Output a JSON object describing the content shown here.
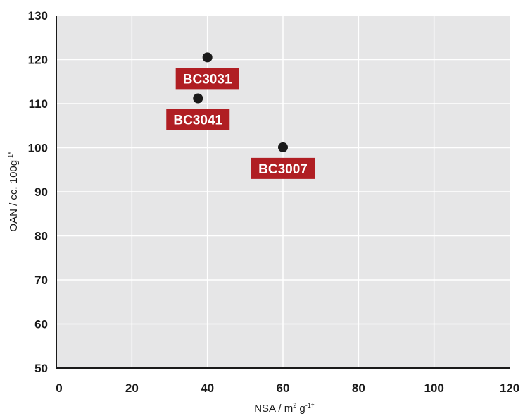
{
  "chart_data": {
    "type": "scatter",
    "title": "",
    "xlabel": {
      "base": "NSA / m",
      "sup1": "2",
      "mid": " g",
      "sup2": "-1†"
    },
    "ylabel": {
      "base": "OAN / cc. 100g",
      "sup": "-1*"
    },
    "xlim": [
      0,
      120
    ],
    "ylim": [
      50,
      130
    ],
    "xticks": [
      "0",
      "20",
      "40",
      "60",
      "80",
      "100",
      "120"
    ],
    "yticks": [
      "50",
      "60",
      "70",
      "80",
      "90",
      "100",
      "110",
      "120",
      "130"
    ],
    "grid": true,
    "points": [
      {
        "label": "BC3031",
        "x": 40,
        "y": 120.5,
        "label_side": "below"
      },
      {
        "label": "BC3041",
        "x": 37.5,
        "y": 111.2,
        "label_side": "below"
      },
      {
        "label": "BC3007",
        "x": 60,
        "y": 100.1,
        "label_side": "below"
      }
    ]
  },
  "colors": {
    "plot_bg": "#e6e6e7",
    "grid": "#ffffff",
    "axis": "#1a1a1a",
    "point": "#1a1a1a",
    "badge": "#b01e23"
  }
}
